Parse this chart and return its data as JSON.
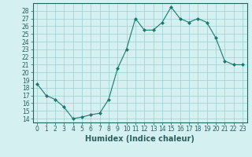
{
  "x": [
    0,
    1,
    2,
    3,
    4,
    5,
    6,
    7,
    8,
    9,
    10,
    11,
    12,
    13,
    14,
    15,
    16,
    17,
    18,
    19,
    20,
    21,
    22,
    23
  ],
  "y": [
    18.5,
    17.0,
    16.5,
    15.5,
    14.0,
    14.2,
    14.5,
    14.7,
    16.5,
    20.5,
    23.0,
    27.0,
    25.5,
    25.5,
    26.5,
    28.5,
    27.0,
    26.5,
    27.0,
    26.5,
    24.5,
    21.5,
    21.0,
    21.0
  ],
  "line_color": "#1a7a6e",
  "marker": "D",
  "marker_size": 2.0,
  "bg_color": "#d4f0f0",
  "grid_color": "#9acece",
  "xlabel": "Humidex (Indice chaleur)",
  "xlim": [
    -0.5,
    23.5
  ],
  "ylim": [
    13.5,
    29
  ],
  "yticks": [
    14,
    15,
    16,
    17,
    18,
    19,
    20,
    21,
    22,
    23,
    24,
    25,
    26,
    27,
    28
  ],
  "xticks": [
    0,
    1,
    2,
    3,
    4,
    5,
    6,
    7,
    8,
    9,
    10,
    11,
    12,
    13,
    14,
    15,
    16,
    17,
    18,
    19,
    20,
    21,
    22,
    23
  ],
  "tick_fontsize": 5.5,
  "xlabel_fontsize": 7.0,
  "axis_color": "#2a6060",
  "spine_color": "#2a6060"
}
